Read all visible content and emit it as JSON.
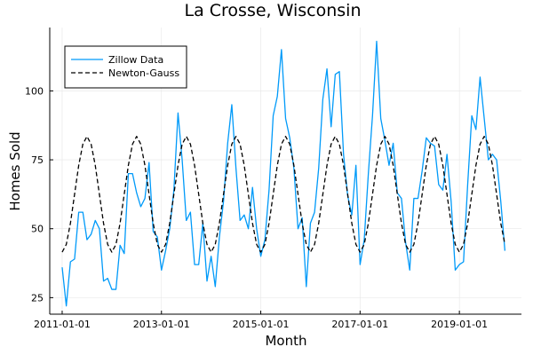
{
  "chart_data": {
    "type": "line",
    "title": "La Crosse, Wisconsin",
    "xlabel": "Month",
    "ylabel": "Homes Sold",
    "x_ticks": [
      "2011-01-01",
      "2013-01-01",
      "2015-01-01",
      "2017-01-01",
      "2019-01-01"
    ],
    "y_ticks": [
      25,
      50,
      75,
      100
    ],
    "xlim": [
      "2010-10-01",
      "2020-04-01"
    ],
    "ylim": [
      19,
      123
    ],
    "grid": true,
    "legend_position": "top-left",
    "series": [
      {
        "name": "Zillow Data",
        "color": "#009af9",
        "style": "solid",
        "x": [
          "2011-01-01",
          "2011-02-01",
          "2011-03-01",
          "2011-04-01",
          "2011-05-01",
          "2011-06-01",
          "2011-07-01",
          "2011-08-01",
          "2011-09-01",
          "2011-10-01",
          "2011-11-01",
          "2011-12-01",
          "2012-01-01",
          "2012-02-01",
          "2012-03-01",
          "2012-04-01",
          "2012-05-01",
          "2012-06-01",
          "2012-07-01",
          "2012-08-01",
          "2012-09-01",
          "2012-10-01",
          "2012-11-01",
          "2012-12-01",
          "2013-01-01",
          "2013-02-01",
          "2013-03-01",
          "2013-04-01",
          "2013-05-01",
          "2013-06-01",
          "2013-07-01",
          "2013-08-01",
          "2013-09-01",
          "2013-10-01",
          "2013-11-01",
          "2013-12-01",
          "2014-01-01",
          "2014-02-01",
          "2014-03-01",
          "2014-04-01",
          "2014-05-01",
          "2014-06-01",
          "2014-07-01",
          "2014-08-01",
          "2014-09-01",
          "2014-10-01",
          "2014-11-01",
          "2014-12-01",
          "2015-01-01",
          "2015-02-01",
          "2015-03-01",
          "2015-04-01",
          "2015-05-01",
          "2015-06-01",
          "2015-07-01",
          "2015-08-01",
          "2015-09-01",
          "2015-10-01",
          "2015-11-01",
          "2015-12-01",
          "2016-01-01",
          "2016-02-01",
          "2016-03-01",
          "2016-04-01",
          "2016-05-01",
          "2016-06-01",
          "2016-07-01",
          "2016-08-01",
          "2016-09-01",
          "2016-10-01",
          "2016-11-01",
          "2016-12-01",
          "2017-01-01",
          "2017-02-01",
          "2017-03-01",
          "2017-04-01",
          "2017-05-01",
          "2017-06-01",
          "2017-07-01",
          "2017-08-01",
          "2017-09-01",
          "2017-10-01",
          "2017-11-01",
          "2017-12-01",
          "2018-01-01",
          "2018-02-01",
          "2018-03-01",
          "2018-04-01",
          "2018-05-01",
          "2018-06-01",
          "2018-07-01",
          "2018-08-01",
          "2018-09-01",
          "2018-10-01",
          "2018-11-01",
          "2018-12-01",
          "2019-01-01",
          "2019-02-01",
          "2019-03-01",
          "2019-04-01",
          "2019-05-01",
          "2019-06-01",
          "2019-07-01",
          "2019-08-01",
          "2019-09-01",
          "2019-10-01",
          "2019-11-01",
          "2019-12-01"
        ],
        "y": [
          36,
          22,
          38,
          39,
          56,
          56,
          46,
          48,
          53,
          50,
          31,
          32,
          28,
          28,
          44,
          41,
          70,
          70,
          63,
          58,
          61,
          74,
          49,
          47,
          35,
          42,
          50,
          64,
          92,
          75,
          53,
          56,
          37,
          37,
          52,
          31,
          40,
          29,
          47,
          60,
          81,
          95,
          72,
          53,
          55,
          50,
          65,
          50,
          40,
          46,
          64,
          91,
          98,
          115,
          90,
          83,
          72,
          50,
          54,
          29,
          52,
          56,
          72,
          97,
          108,
          87,
          106,
          107,
          77,
          62,
          55,
          73,
          37,
          46,
          70,
          91,
          118,
          90,
          82,
          73,
          81,
          63,
          61,
          45,
          35,
          61,
          61,
          71,
          83,
          81,
          80,
          66,
          64,
          77,
          60,
          35,
          37,
          38,
          66,
          91,
          86,
          105,
          90,
          75,
          77,
          75,
          60,
          42
        ]
      },
      {
        "name": "Newton-Gauss",
        "color": "#000000",
        "style": "dashed",
        "model": {
          "mean": 62.5,
          "amplitude": 21,
          "period_months": 12,
          "peak_month": 7
        }
      }
    ]
  }
}
